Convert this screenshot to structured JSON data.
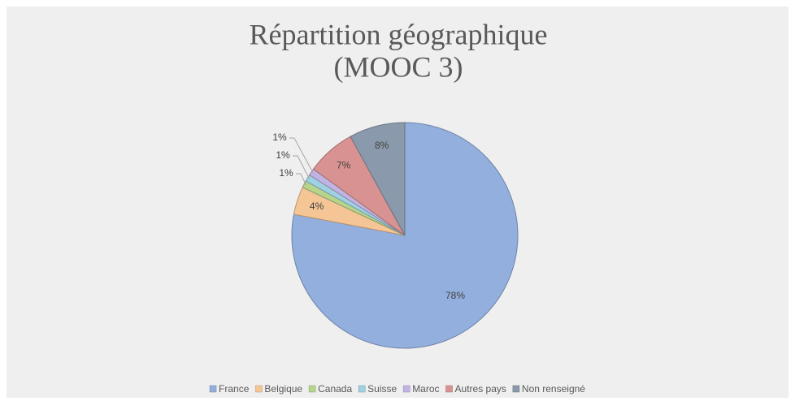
{
  "chart_data": {
    "type": "pie",
    "title": [
      "Répartition géographique",
      "(MOOC 3)"
    ],
    "categories": [
      "France",
      "Belgique",
      "Canada",
      "Suisse",
      "Maroc",
      "Autres pays",
      "Non renseigné"
    ],
    "values": [
      78,
      4,
      1,
      1,
      1,
      7,
      8
    ],
    "value_labels": [
      "78%",
      "4%",
      "1%",
      "1%",
      "1%",
      "7%",
      "8%"
    ],
    "colors": [
      "#93afdd",
      "#f5c596",
      "#b6d48c",
      "#9ed1e2",
      "#c1b4e3",
      "#d99292",
      "#8a99ab"
    ],
    "legend": "bottom"
  }
}
